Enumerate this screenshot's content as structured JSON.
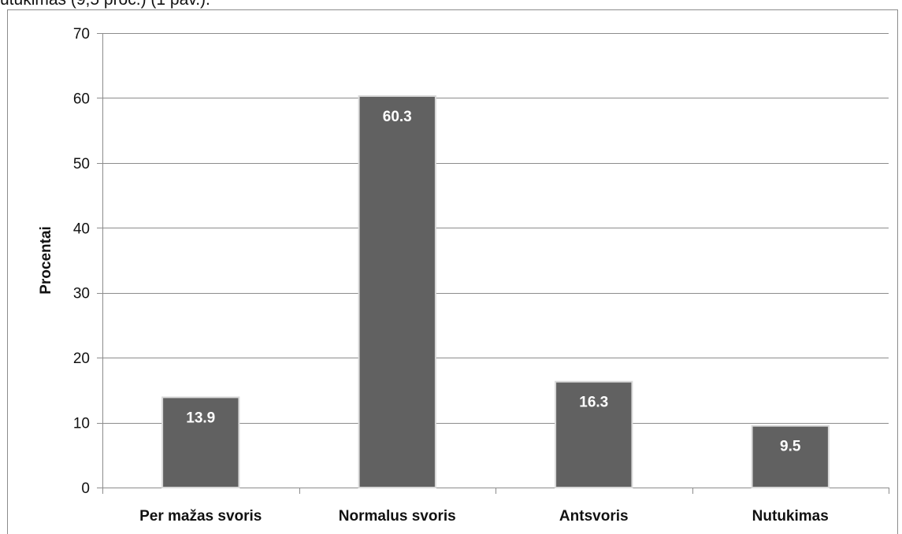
{
  "page": {
    "top_text": "utukimas (9,5 proc.) (1 pav.)."
  },
  "chart_data": {
    "type": "bar",
    "title": "",
    "xlabel": "",
    "ylabel": "Procentai",
    "categories": [
      "Per mažas svoris",
      "Normalus svoris",
      "Antsvoris",
      "Nutukimas"
    ],
    "values": [
      13.9,
      60.3,
      16.3,
      9.5
    ],
    "value_labels": [
      "13.9",
      "60.3",
      "16.3",
      "9.5"
    ],
    "ylim": [
      0,
      70
    ],
    "yticks": [
      0,
      10,
      20,
      30,
      40,
      50,
      60,
      70
    ],
    "grid": true,
    "legend": "none",
    "colors": {
      "bar": "#616161",
      "bar_edge": "#d9d9d9",
      "grid": "#8c8c8c",
      "axis": "#8c8c8c",
      "label": "#ffffff"
    }
  }
}
